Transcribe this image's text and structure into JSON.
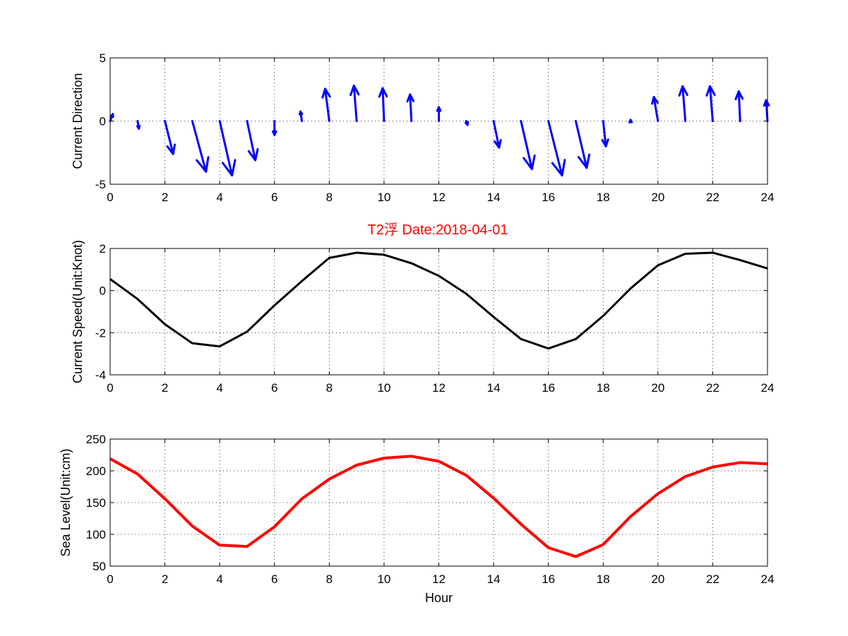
{
  "figure": {
    "title": "T2浮    Date:2018-04-01",
    "title_color": "#ff0000"
  },
  "chart_data": [
    {
      "type": "quiver",
      "name": "current-direction",
      "ylabel": "Current Direction",
      "xlabel": "",
      "xlim": [
        0,
        24
      ],
      "ylim": [
        -5,
        5
      ],
      "xticks": [
        0,
        2,
        4,
        6,
        8,
        10,
        12,
        14,
        16,
        18,
        20,
        22,
        24
      ],
      "yticks": [
        -5,
        0,
        5
      ],
      "grid": true,
      "color": "#0000ff",
      "vectors": [
        {
          "x": 0,
          "u": 0.1,
          "v": 0.55
        },
        {
          "x": 1,
          "u": 0.05,
          "v": -0.6
        },
        {
          "x": 2,
          "u": 0.3,
          "v": -2.6
        },
        {
          "x": 3,
          "u": 0.5,
          "v": -4.0
        },
        {
          "x": 4,
          "u": 0.45,
          "v": -4.3
        },
        {
          "x": 5,
          "u": 0.3,
          "v": -3.1
        },
        {
          "x": 6,
          "u": 0.0,
          "v": -1.1
        },
        {
          "x": 7,
          "u": -0.05,
          "v": 0.75
        },
        {
          "x": 8,
          "u": -0.15,
          "v": 2.55
        },
        {
          "x": 9,
          "u": -0.1,
          "v": 2.8
        },
        {
          "x": 10,
          "u": -0.05,
          "v": 2.6
        },
        {
          "x": 11,
          "u": -0.05,
          "v": 2.1
        },
        {
          "x": 12,
          "u": 0.0,
          "v": 1.1
        },
        {
          "x": 13,
          "u": 0.05,
          "v": -0.3
        },
        {
          "x": 14,
          "u": 0.2,
          "v": -2.1
        },
        {
          "x": 15,
          "u": 0.4,
          "v": -3.8
        },
        {
          "x": 16,
          "u": 0.5,
          "v": -4.3
        },
        {
          "x": 17,
          "u": 0.4,
          "v": -3.7
        },
        {
          "x": 18,
          "u": 0.1,
          "v": -2.0
        },
        {
          "x": 19,
          "u": 0.0,
          "v": 0.1
        },
        {
          "x": 20,
          "u": -0.15,
          "v": 1.9
        },
        {
          "x": 21,
          "u": -0.1,
          "v": 2.75
        },
        {
          "x": 22,
          "u": -0.1,
          "v": 2.75
        },
        {
          "x": 23,
          "u": -0.05,
          "v": 2.35
        },
        {
          "x": 24,
          "u": -0.05,
          "v": 1.65
        }
      ]
    },
    {
      "type": "line",
      "name": "current-speed",
      "ylabel": "Current Speed(Unit:Knot)",
      "xlabel": "",
      "xlim": [
        0,
        24
      ],
      "ylim": [
        -4,
        2
      ],
      "xticks": [
        0,
        2,
        4,
        6,
        8,
        10,
        12,
        14,
        16,
        18,
        20,
        22,
        24
      ],
      "yticks": [
        -4,
        -2,
        0,
        2
      ],
      "grid": true,
      "color": "#000000",
      "x": [
        0,
        1,
        2,
        3,
        4,
        5,
        6,
        7,
        8,
        9,
        10,
        11,
        12,
        13,
        14,
        15,
        16,
        17,
        18,
        19,
        20,
        21,
        22,
        23,
        24
      ],
      "values": [
        0.55,
        -0.4,
        -1.6,
        -2.5,
        -2.65,
        -1.95,
        -0.7,
        0.45,
        1.55,
        1.8,
        1.7,
        1.3,
        0.7,
        -0.15,
        -1.25,
        -2.3,
        -2.75,
        -2.3,
        -1.2,
        0.1,
        1.2,
        1.75,
        1.8,
        1.45,
        1.05
      ]
    },
    {
      "type": "line",
      "name": "sea-level",
      "ylabel": "Sea Level(Unit:cm)",
      "xlabel": "Hour",
      "xlim": [
        0,
        24
      ],
      "ylim": [
        50,
        250
      ],
      "xticks": [
        0,
        2,
        4,
        6,
        8,
        10,
        12,
        14,
        16,
        18,
        20,
        22,
        24
      ],
      "yticks": [
        50,
        100,
        150,
        200,
        250
      ],
      "grid": true,
      "color": "#ff0000",
      "x": [
        0,
        1,
        2,
        3,
        4,
        5,
        6,
        7,
        8,
        9,
        10,
        11,
        12,
        13,
        14,
        15,
        16,
        17,
        18,
        19,
        20,
        21,
        22,
        23,
        24
      ],
      "values": [
        219,
        195,
        156,
        113,
        83,
        81,
        112,
        156,
        187,
        209,
        220,
        223,
        215,
        193,
        157,
        116,
        79,
        65,
        84,
        128,
        164,
        191,
        206,
        213,
        211
      ]
    }
  ]
}
